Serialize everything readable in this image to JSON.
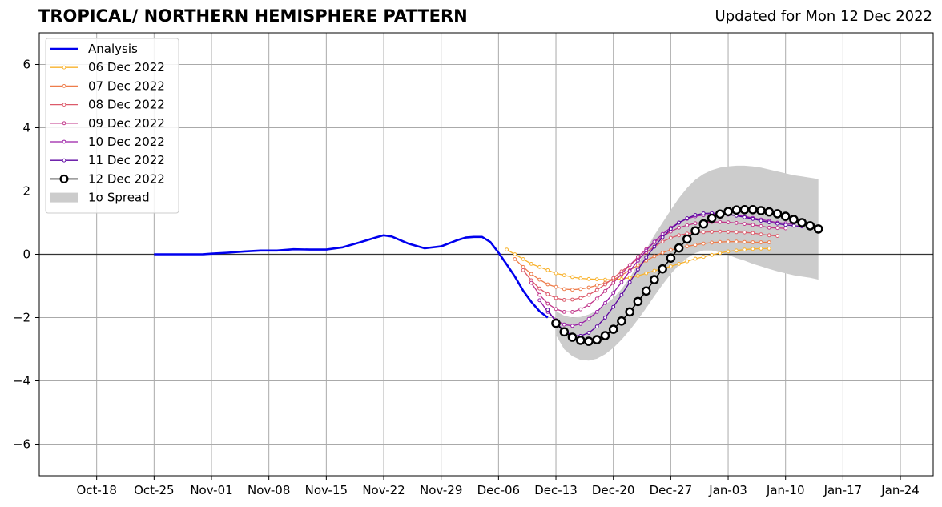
{
  "header": {
    "title": "TROPICAL/ NORTHERN HEMISPHERE PATTERN",
    "updated": "Updated for Mon 12 Dec 2022"
  },
  "chart_data": {
    "type": "line",
    "title": "TROPICAL/ NORTHERN HEMISPHERE PATTERN",
    "subtitle": "Updated for Mon 12 Dec 2022",
    "xlabel": "",
    "ylabel": "",
    "xlim": [
      "2022-10-11",
      "2023-01-28"
    ],
    "ylim": [
      -7,
      7
    ],
    "x_ticks": [
      {
        "date": "2022-10-18",
        "label": "Oct-18"
      },
      {
        "date": "2022-10-25",
        "label": "Oct-25"
      },
      {
        "date": "2022-11-01",
        "label": "Nov-01"
      },
      {
        "date": "2022-11-08",
        "label": "Nov-08"
      },
      {
        "date": "2022-11-15",
        "label": "Nov-15"
      },
      {
        "date": "2022-11-22",
        "label": "Nov-22"
      },
      {
        "date": "2022-11-29",
        "label": "Nov-29"
      },
      {
        "date": "2022-12-06",
        "label": "Dec-06"
      },
      {
        "date": "2022-12-13",
        "label": "Dec-13"
      },
      {
        "date": "2022-12-20",
        "label": "Dec-20"
      },
      {
        "date": "2022-12-27",
        "label": "Dec-27"
      },
      {
        "date": "2023-01-03",
        "label": "Jan-03"
      },
      {
        "date": "2023-01-10",
        "label": "Jan-10"
      },
      {
        "date": "2023-01-17",
        "label": "Jan-17"
      },
      {
        "date": "2023-01-24",
        "label": "Jan-24"
      }
    ],
    "y_ticks": [
      {
        "value": 6,
        "label": "6"
      },
      {
        "value": 4,
        "label": "4"
      },
      {
        "value": 2,
        "label": "2"
      },
      {
        "value": 0,
        "label": "0"
      },
      {
        "value": -2,
        "label": "−2"
      },
      {
        "value": -4,
        "label": "−4"
      },
      {
        "value": -6,
        "label": "−6"
      }
    ],
    "grid": true,
    "legend_position": "top-left",
    "zero_line": 0,
    "analysis": {
      "name": "Analysis",
      "color": "#0000ee",
      "points": [
        [
          "2022-10-25",
          0.0
        ],
        [
          "2022-10-28",
          0.0
        ],
        [
          "2022-10-31",
          0.0
        ],
        [
          "2022-11-01",
          0.02
        ],
        [
          "2022-11-03",
          0.05
        ],
        [
          "2022-11-05",
          0.09
        ],
        [
          "2022-11-07",
          0.12
        ],
        [
          "2022-11-09",
          0.12
        ],
        [
          "2022-11-11",
          0.16
        ],
        [
          "2022-11-13",
          0.15
        ],
        [
          "2022-11-15",
          0.15
        ],
        [
          "2022-11-17",
          0.22
        ],
        [
          "2022-11-19",
          0.37
        ],
        [
          "2022-11-21",
          0.53
        ],
        [
          "2022-11-22",
          0.6
        ],
        [
          "2022-11-23",
          0.56
        ],
        [
          "2022-11-25",
          0.34
        ],
        [
          "2022-11-27",
          0.19
        ],
        [
          "2022-11-29",
          0.25
        ],
        [
          "2022-12-01",
          0.45
        ],
        [
          "2022-12-02",
          0.53
        ],
        [
          "2022-12-03",
          0.55
        ],
        [
          "2022-12-04",
          0.55
        ],
        [
          "2022-12-05",
          0.39
        ],
        [
          "2022-12-06",
          0.05
        ],
        [
          "2022-12-07",
          -0.32
        ],
        [
          "2022-12-08",
          -0.7
        ],
        [
          "2022-12-09",
          -1.15
        ],
        [
          "2022-12-10",
          -1.5
        ],
        [
          "2022-12-11",
          -1.8
        ],
        [
          "2022-12-12",
          -2.0
        ]
      ]
    },
    "forecasts": [
      {
        "name": "06 Dec 2022",
        "color": "#f8b22c",
        "start": "2022-12-07",
        "values": [
          0.15,
          0.0,
          -0.15,
          -0.3,
          -0.4,
          -0.5,
          -0.6,
          -0.66,
          -0.72,
          -0.76,
          -0.78,
          -0.79,
          -0.8,
          -0.8,
          -0.78,
          -0.74,
          -0.68,
          -0.6,
          -0.52,
          -0.45,
          -0.38,
          -0.3,
          -0.22,
          -0.14,
          -0.08,
          -0.02,
          0.04,
          0.09,
          0.12,
          0.15,
          0.17,
          0.18,
          0.18
        ]
      },
      {
        "name": "07 Dec 2022",
        "color": "#ee7c4a",
        "start": "2022-12-08",
        "values": [
          -0.15,
          -0.4,
          -0.62,
          -0.8,
          -0.95,
          -1.03,
          -1.1,
          -1.12,
          -1.1,
          -1.05,
          -0.98,
          -0.9,
          -0.8,
          -0.66,
          -0.5,
          -0.35,
          -0.2,
          -0.06,
          0.05,
          0.14,
          0.2,
          0.25,
          0.3,
          0.34,
          0.37,
          0.39,
          0.4,
          0.4,
          0.39,
          0.38,
          0.38,
          0.38
        ]
      },
      {
        "name": "08 Dec 2022",
        "color": "#dc5a6a",
        "start": "2022-12-09",
        "values": [
          -0.5,
          -0.82,
          -1.08,
          -1.26,
          -1.38,
          -1.44,
          -1.43,
          -1.38,
          -1.28,
          -1.13,
          -0.95,
          -0.75,
          -0.54,
          -0.34,
          -0.14,
          0.06,
          0.24,
          0.4,
          0.52,
          0.6,
          0.65,
          0.68,
          0.7,
          0.71,
          0.72,
          0.71,
          0.7,
          0.69,
          0.67,
          0.63,
          0.6,
          0.58
        ]
      },
      {
        "name": "09 Dec 2022",
        "color": "#c1368a",
        "start": "2022-12-10",
        "values": [
          -0.9,
          -1.28,
          -1.56,
          -1.73,
          -1.82,
          -1.82,
          -1.74,
          -1.6,
          -1.4,
          -1.16,
          -0.9,
          -0.62,
          -0.34,
          -0.08,
          0.16,
          0.38,
          0.56,
          0.72,
          0.84,
          0.92,
          0.98,
          1.01,
          1.02,
          1.02,
          1.01,
          0.99,
          0.96,
          0.93,
          0.89,
          0.84,
          0.83,
          0.82
        ]
      },
      {
        "name": "10 Dec 2022",
        "color": "#9a1ea6",
        "start": "2022-12-11",
        "values": [
          -1.45,
          -1.82,
          -2.08,
          -2.22,
          -2.26,
          -2.2,
          -2.04,
          -1.82,
          -1.54,
          -1.22,
          -0.88,
          -0.53,
          -0.2,
          0.12,
          0.4,
          0.64,
          0.84,
          1.0,
          1.12,
          1.2,
          1.24,
          1.26,
          1.26,
          1.25,
          1.23,
          1.2,
          1.15,
          1.1,
          1.05,
          1.0,
          0.98,
          0.96
        ]
      },
      {
        "name": "11 Dec 2022",
        "color": "#5c04a0",
        "start": "2022-12-12",
        "values": [
          -1.75,
          -2.15,
          -2.42,
          -2.56,
          -2.58,
          -2.48,
          -2.28,
          -2.0,
          -1.66,
          -1.28,
          -0.88,
          -0.48,
          -0.1,
          0.24,
          0.54,
          0.8,
          1.0,
          1.14,
          1.24,
          1.29,
          1.3,
          1.29,
          1.26,
          1.22,
          1.17,
          1.12,
          1.06,
          1.01,
          0.97,
          0.93,
          0.9,
          0.88
        ]
      },
      {
        "name": "12 Dec 2022",
        "color": "#000000",
        "start": "2022-12-13",
        "values": [
          -2.18,
          -2.45,
          -2.62,
          -2.72,
          -2.75,
          -2.7,
          -2.57,
          -2.37,
          -2.11,
          -1.82,
          -1.49,
          -1.16,
          -0.8,
          -0.46,
          -0.12,
          0.2,
          0.48,
          0.74,
          0.96,
          1.14,
          1.27,
          1.35,
          1.4,
          1.41,
          1.41,
          1.38,
          1.34,
          1.28,
          1.2,
          1.1,
          1.0,
          0.9,
          0.8
        ]
      }
    ],
    "spread": {
      "name": "1σ Spread",
      "color": "#cccccc",
      "start": "2022-12-13",
      "upper": [
        -1.8,
        -1.94,
        -2.0,
        -1.98,
        -1.9,
        -1.78,
        -1.6,
        -1.38,
        -1.1,
        -0.74,
        -0.3,
        0.16,
        0.6,
        1.0,
        1.4,
        1.78,
        2.1,
        2.36,
        2.54,
        2.66,
        2.74,
        2.78,
        2.8,
        2.8,
        2.78,
        2.74,
        2.68,
        2.62,
        2.56,
        2.5,
        2.46,
        2.42,
        2.38
      ],
      "lower": [
        -2.55,
        -3.0,
        -3.22,
        -3.34,
        -3.36,
        -3.3,
        -3.16,
        -2.96,
        -2.7,
        -2.4,
        -2.06,
        -1.7,
        -1.32,
        -0.96,
        -0.62,
        -0.34,
        -0.12,
        0.04,
        0.12,
        0.12,
        0.06,
        -0.02,
        -0.12,
        -0.2,
        -0.3,
        -0.38,
        -0.46,
        -0.54,
        -0.6,
        -0.66,
        -0.7,
        -0.74,
        -0.8
      ]
    }
  }
}
